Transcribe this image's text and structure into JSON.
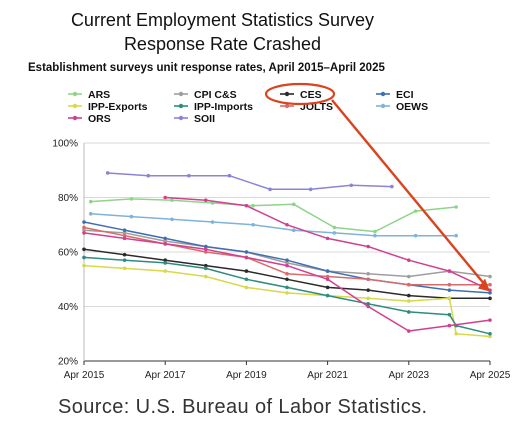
{
  "headline": {
    "line1": "Current Employment Statistics Survey",
    "line2": "Response Rate Crashed"
  },
  "source": "Source: U.S. Bureau of Labor Statistics.",
  "colors": {
    "ARS": "#8fd48a",
    "CPI C&S": "#9e9e9e",
    "CES": "#2a2a2a",
    "ECI": "#3f6fb0",
    "IPP-Exports": "#d8d84a",
    "IPP-Imports": "#2e8b7d",
    "JOLTS": "#d96a6a",
    "OEWS": "#7fb3d9",
    "ORS": "#d0408f",
    "SOII": "#8a84d6",
    "annotation": "#d9431e"
  },
  "chart_data": {
    "type": "line",
    "title": "Establishment surveys unit response rates, April 2015–April 2025",
    "xlabel": "",
    "ylabel": "",
    "x_ticks": [
      "Apr 2015",
      "Apr 2017",
      "Apr 2019",
      "Apr 2021",
      "Apr 2023",
      "Apr 2025"
    ],
    "y_ticks": [
      "100%",
      "80%",
      "60%",
      "40%",
      "20%"
    ],
    "ylim": [
      20,
      100
    ],
    "xlim": [
      "2015-04",
      "2025-04"
    ],
    "legend_position": "top",
    "grid": "horizontal",
    "series": [
      {
        "name": "ARS",
        "x": [
          "2015-06",
          "2016-06",
          "2017-06",
          "2018-06",
          "2019-06",
          "2020-06",
          "2021-06",
          "2022-06",
          "2023-06",
          "2024-06"
        ],
        "values": [
          78.5,
          79.5,
          79,
          78,
          77,
          77.5,
          69,
          67.5,
          75,
          76.5
        ]
      },
      {
        "name": "CPI C&S",
        "x": [
          "2015-04",
          "2016-04",
          "2017-04",
          "2018-04",
          "2019-04",
          "2020-04",
          "2021-04",
          "2022-04",
          "2023-04",
          "2024-04",
          "2025-04"
        ],
        "values": [
          68,
          67,
          64,
          62,
          60,
          56,
          53,
          52,
          51,
          53,
          51
        ]
      },
      {
        "name": "CES",
        "x": [
          "2015-04",
          "2016-04",
          "2017-04",
          "2018-04",
          "2019-04",
          "2020-04",
          "2021-04",
          "2022-04",
          "2023-04",
          "2024-04",
          "2025-04"
        ],
        "values": [
          61,
          59,
          57,
          55,
          53,
          50,
          47,
          46,
          44,
          43,
          43
        ]
      },
      {
        "name": "ECI",
        "x": [
          "2015-04",
          "2016-04",
          "2017-04",
          "2018-04",
          "2019-04",
          "2020-04",
          "2021-04",
          "2022-04",
          "2023-04",
          "2024-04",
          "2025-04"
        ],
        "values": [
          71,
          68,
          65,
          62,
          60,
          57,
          53,
          50,
          48,
          46,
          45
        ]
      },
      {
        "name": "IPP-Exports",
        "x": [
          "2015-04",
          "2016-04",
          "2017-04",
          "2018-04",
          "2019-04",
          "2020-04",
          "2021-04",
          "2022-04",
          "2023-04",
          "2024-04",
          "2024-06",
          "2025-04"
        ],
        "values": [
          55,
          54,
          53,
          51,
          47,
          45,
          44,
          43,
          42,
          43,
          30,
          29
        ]
      },
      {
        "name": "IPP-Imports",
        "x": [
          "2015-04",
          "2016-04",
          "2017-04",
          "2018-04",
          "2019-04",
          "2020-04",
          "2021-04",
          "2022-04",
          "2023-04",
          "2024-04",
          "2024-06",
          "2025-04"
        ],
        "values": [
          58,
          57,
          56,
          54,
          50,
          47,
          44,
          41,
          38,
          37,
          33,
          30
        ]
      },
      {
        "name": "JOLTS",
        "x": [
          "2015-04",
          "2016-04",
          "2017-04",
          "2018-04",
          "2019-04",
          "2020-04",
          "2021-04",
          "2022-04",
          "2023-04",
          "2024-04",
          "2025-04"
        ],
        "values": [
          69,
          66,
          63,
          60,
          58,
          52,
          51,
          50,
          48,
          48,
          48
        ]
      },
      {
        "name": "OEWS",
        "x": [
          "2015-06",
          "2016-06",
          "2017-06",
          "2018-06",
          "2019-06",
          "2020-06",
          "2021-06",
          "2022-06",
          "2023-06",
          "2024-06"
        ],
        "values": [
          74,
          73,
          72,
          71,
          70,
          68,
          67,
          66,
          66,
          66
        ]
      },
      {
        "name": "ORS",
        "x": [
          "2015-04",
          "2016-04",
          "2017-04",
          "2018-04",
          "2019-04",
          "2020-04",
          "2021-04",
          "2022-04",
          "2023-04",
          "2024-04",
          "2025-04"
        ],
        "values": [
          67,
          65,
          63,
          61,
          58,
          55,
          50,
          40,
          31,
          33,
          35
        ]
      },
      {
        "name": "SOII",
        "x": [
          "2015-11",
          "2016-11",
          "2017-11",
          "2018-11",
          "2019-11",
          "2020-11",
          "2021-11",
          "2022-11"
        ],
        "values": [
          89,
          88,
          88,
          88,
          83,
          83,
          84.5,
          84
        ]
      }
    ],
    "extra_series_points": {
      "ORS_annual": {
        "x": [
          "2017-04",
          "2018-04",
          "2019-04",
          "2020-04",
          "2021-04",
          "2022-04",
          "2023-04",
          "2024-04",
          "2025-04"
        ],
        "values": [
          80,
          79,
          77,
          70,
          65,
          62,
          57,
          53,
          46
        ]
      }
    }
  },
  "legend": [
    {
      "name": "ARS"
    },
    {
      "name": "CPI C&S"
    },
    {
      "name": "CES"
    },
    {
      "name": "ECI"
    },
    {
      "name": "IPP-Exports"
    },
    {
      "name": "IPP-Imports"
    },
    {
      "name": "JOLTS"
    },
    {
      "name": "OEWS"
    },
    {
      "name": "ORS"
    },
    {
      "name": "SOII"
    }
  ]
}
